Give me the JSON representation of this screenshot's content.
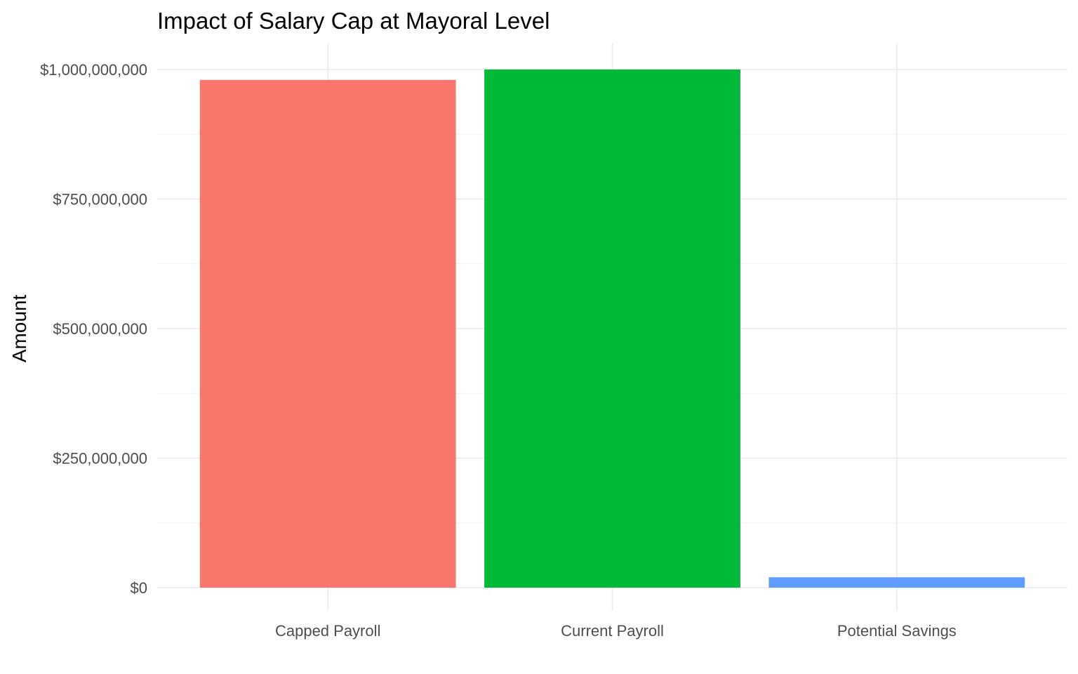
{
  "chart_data": {
    "type": "bar",
    "title": "Impact of Salary Cap at Mayoral Level",
    "xlabel": "",
    "ylabel": "Amount",
    "categories": [
      "Capped Payroll",
      "Current Payroll",
      "Potential Savings"
    ],
    "values": [
      980000000,
      1000000000,
      20000000
    ],
    "colors": [
      "#F8766D",
      "#00BA38",
      "#619CFF"
    ],
    "ylim": [
      0,
      1000000000
    ],
    "yticks": [
      0,
      250000000,
      500000000,
      750000000,
      1000000000
    ],
    "ytick_labels": [
      "$0",
      "$250,000,000",
      "$500,000,000",
      "$750,000,000",
      "$1,000,000,000"
    ],
    "grid": true,
    "legend": "none"
  }
}
